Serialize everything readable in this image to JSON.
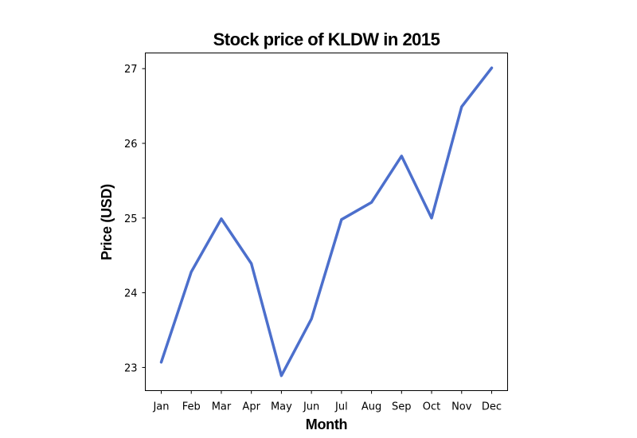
{
  "chart_data": {
    "type": "line",
    "title": "Stock price of KLDW in 2015",
    "xlabel": "Month",
    "ylabel": "Price (USD)",
    "categories": [
      "Jan",
      "Feb",
      "Mar",
      "Apr",
      "May",
      "Jun",
      "Jul",
      "Aug",
      "Sep",
      "Oct",
      "Nov",
      "Dec"
    ],
    "series": [
      {
        "values": [
          23.07,
          24.28,
          24.99,
          24.39,
          22.89,
          23.65,
          24.98,
          25.21,
          25.83,
          25.0,
          26.49,
          27.01
        ],
        "color": "#4c6fcc"
      }
    ],
    "yticks": [
      23,
      24,
      25,
      26,
      27
    ],
    "ylim": [
      22.69,
      27.21
    ],
    "grid": false,
    "legend": false
  }
}
